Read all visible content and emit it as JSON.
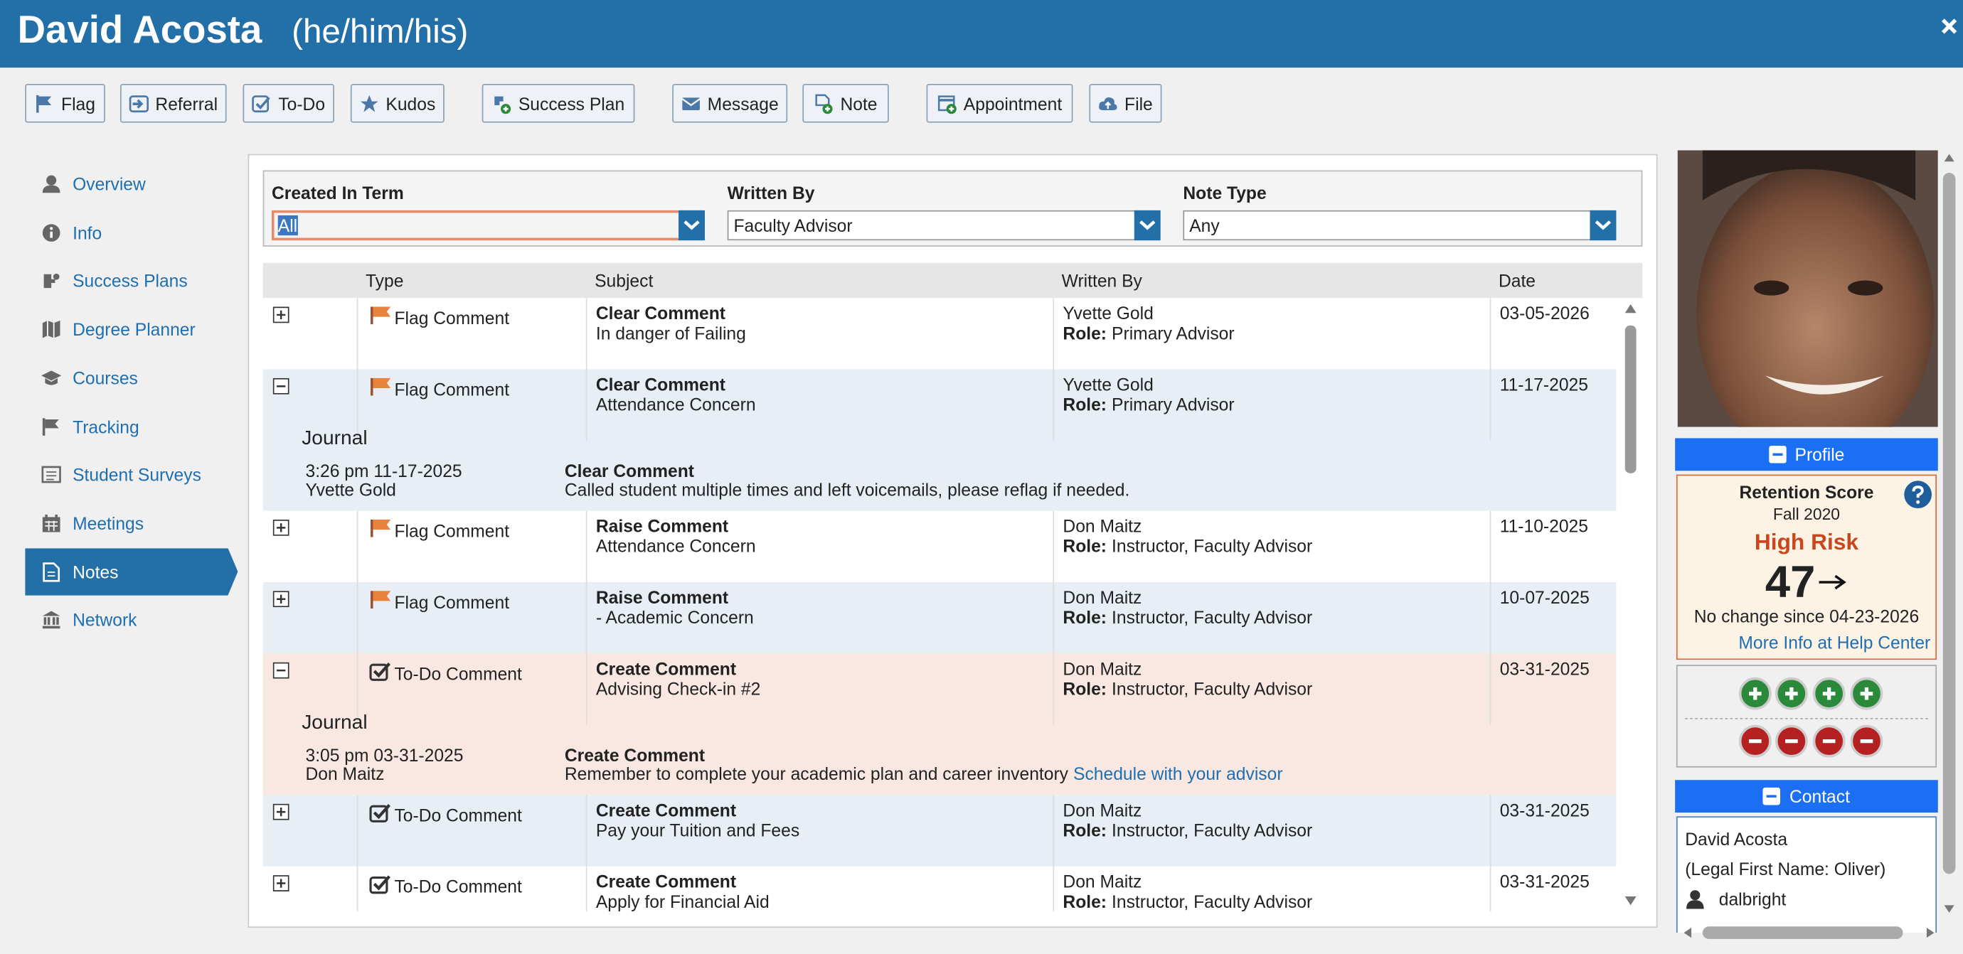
{
  "header": {
    "name": "David Acosta",
    "pronouns": "(he/him/his)"
  },
  "toolbar": [
    "Flag",
    "Referral",
    "To-Do",
    "Kudos",
    "Success Plan",
    "Message",
    "Note",
    "Appointment",
    "File"
  ],
  "nav": {
    "items": [
      "Overview",
      "Info",
      "Success Plans",
      "Degree Planner",
      "Courses",
      "Tracking",
      "Student Surveys",
      "Meetings",
      "Notes",
      "Network"
    ],
    "active": "Notes"
  },
  "filters": [
    {
      "label": "Created In Term",
      "value": "All"
    },
    {
      "label": "Written By",
      "value": "Faculty Advisor"
    },
    {
      "label": "Note Type",
      "value": "Any"
    }
  ],
  "table": {
    "columns": [
      "Type",
      "Subject",
      "Written By",
      "Date"
    ],
    "rows": [
      {
        "type": "Flag Comment",
        "subject": "Clear Comment",
        "detail": "In danger of Failing",
        "author": "Yvette Gold",
        "role_label": "Role:",
        "role": "Primary Advisor",
        "date": "03-05-2026"
      },
      {
        "type": "Flag Comment",
        "subject": "Clear Comment",
        "detail": "Attendance Concern",
        "author": "Yvette Gold",
        "role_label": "Role:",
        "role": "Primary Advisor",
        "date": "11-17-2025",
        "journal": {
          "heading": "Journal",
          "time": "3:26 pm 11-17-2025",
          "author": "Yvette Gold",
          "title": "Clear Comment",
          "text": "Called student multiple times and left voicemails, please reflag if needed."
        }
      },
      {
        "type": "Flag Comment",
        "subject": "Raise Comment",
        "detail": "Attendance Concern",
        "author": "Don Maitz",
        "role_label": "Role:",
        "role": "Instructor, Faculty Advisor",
        "date": "11-10-2025"
      },
      {
        "type": "Flag Comment",
        "subject": "Raise Comment",
        "detail": "- Academic Concern",
        "author": "Don Maitz",
        "role_label": "Role:",
        "role": "Instructor, Faculty Advisor",
        "date": "10-07-2025"
      },
      {
        "type": "To-Do Comment",
        "subject": "Create Comment",
        "detail": "Advising Check-in #2",
        "author": "Don Maitz",
        "role_label": "Role:",
        "role": "Instructor, Faculty Advisor",
        "date": "03-31-2025",
        "journal": {
          "heading": "Journal",
          "time": "3:05 pm 03-31-2025",
          "author": "Don Maitz",
          "title": "Create Comment",
          "text": "Remember to complete your academic plan and career inventory",
          "link": "Schedule with your advisor"
        }
      },
      {
        "type": "To-Do Comment",
        "subject": "Create Comment",
        "detail": "Pay your Tuition and Fees",
        "author": "Don Maitz",
        "role_label": "Role:",
        "role": "Instructor, Faculty Advisor",
        "date": "03-31-2025"
      },
      {
        "type": "To-Do Comment",
        "subject": "Create Comment",
        "detail": "Apply for Financial Aid",
        "author": "Don Maitz",
        "role_label": "Role:",
        "role": "Instructor, Faculty Advisor",
        "date": "03-31-2025"
      }
    ]
  },
  "profile": {
    "title": "Profile",
    "retention": {
      "title": "Retention Score",
      "term": "Fall 2020",
      "risk": "High Risk",
      "score": 47,
      "change": "No change since 04-23-2026",
      "link": "More Info at Help Center"
    }
  },
  "contact": {
    "title": "Contact",
    "lines": [
      "David Acosta",
      "(Legal First Name: Oliver)",
      "dalbright"
    ]
  }
}
